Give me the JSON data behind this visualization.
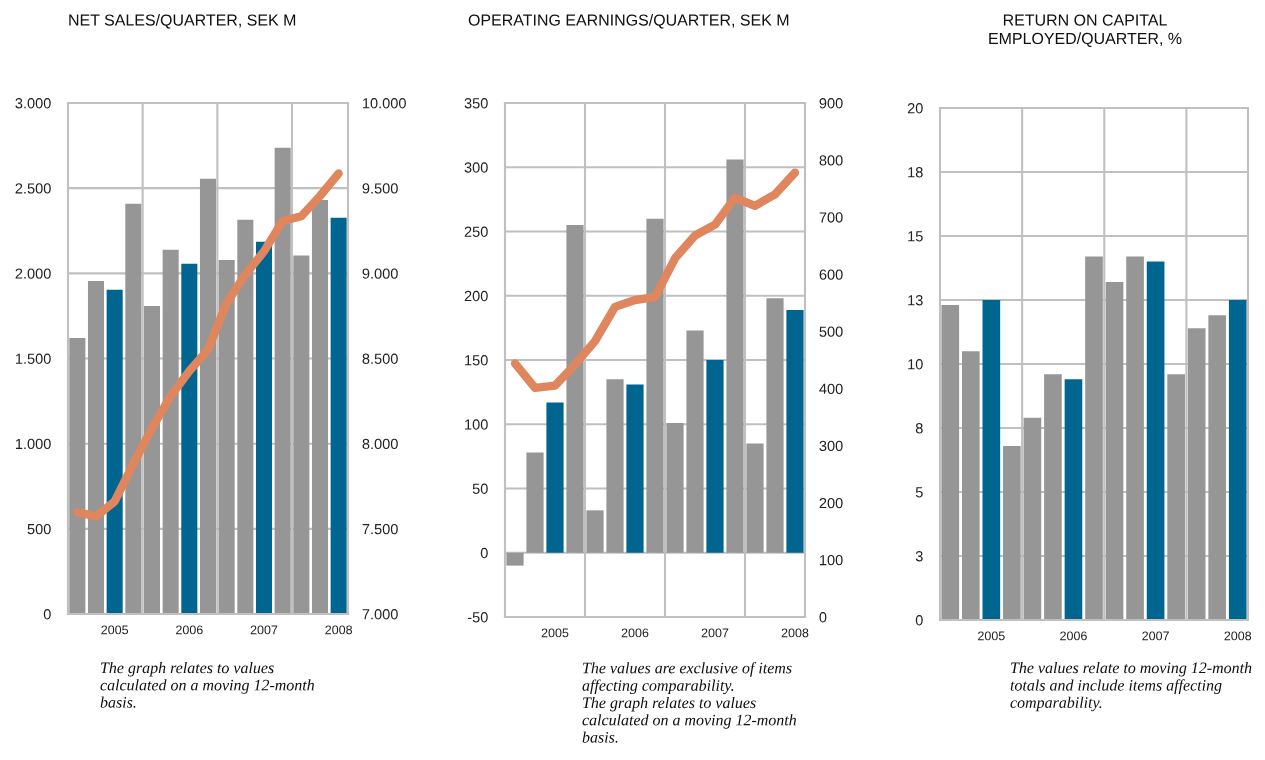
{
  "chart_data": [
    {
      "type": "bar",
      "title": "NET SALES/QUARTER, SEK M",
      "categories": [
        null,
        null,
        "2005",
        null,
        null,
        null,
        "2006",
        null,
        null,
        null,
        "2007",
        null,
        null,
        null,
        "2008"
      ],
      "series": [
        {
          "colors": [
            "#969696",
            "#969696",
            "#006690",
            "#969696",
            "#969696",
            "#969696",
            "#006690",
            "#969696",
            "#969696",
            "#969696",
            "#006690",
            "#969696",
            "#969696",
            "#969696",
            "#006690"
          ],
          "values": [
            1620,
            1955,
            1903,
            2408,
            1808,
            2138,
            2056,
            2555,
            2079,
            2314,
            2186,
            2738,
            2104,
            2431,
            2326
          ]
        },
        {
          "type": "line",
          "axis": "y2",
          "color": "#e0865e",
          "values": [
            7598,
            7573,
            7661,
            7881,
            8091,
            8280,
            8426,
            8552,
            8825,
            8993,
            9129,
            9307,
            9335,
            9454,
            9587
          ]
        }
      ],
      "ylim": [
        0,
        3000
      ],
      "yticks": [
        0,
        {
          "value": 500,
          "label": "500"
        },
        {
          "value": 1000,
          "label": "1.000"
        },
        {
          "value": 1500,
          "label": "1.500"
        },
        {
          "value": 2000,
          "label": "2.000"
        },
        {
          "value": 2500,
          "label": "2.500"
        },
        {
          "value": 3000,
          "label": "3.000"
        }
      ],
      "y2lim": [
        7000,
        10000
      ],
      "y2ticks": [
        {
          "value": 7000,
          "label": "7.000"
        },
        {
          "value": 7500,
          "label": "7.500"
        },
        {
          "value": 8000,
          "label": "8.000"
        },
        {
          "value": 8500,
          "label": "8.500"
        },
        {
          "value": 9000,
          "label": "9.000"
        },
        {
          "value": 9500,
          "label": "9.500"
        },
        {
          "value": 10000,
          "label": "10.000"
        }
      ],
      "grid": "y",
      "annotations": [
        "The graph relates to values calculated on a moving 12-month basis."
      ]
    },
    {
      "type": "bar",
      "title": "OPERATING EARNINGS/QUARTER, SEK M",
      "categories": [
        null,
        null,
        "2005",
        null,
        null,
        null,
        "2006",
        null,
        null,
        null,
        "2007",
        null,
        null,
        null,
        "2008"
      ],
      "series": [
        {
          "colors": [
            "#969696",
            "#969696",
            "#006690",
            "#969696",
            "#969696",
            "#969696",
            "#006690",
            "#969696",
            "#969696",
            "#969696",
            "#006690",
            "#969696",
            "#969696",
            "#969696",
            "#006690"
          ],
          "values": [
            -10,
            78,
            117,
            255,
            33,
            135,
            131,
            260,
            101,
            173,
            150,
            306,
            85,
            198,
            189
          ]
        },
        {
          "type": "line",
          "axis": "y2",
          "color": "#e0865e",
          "values": [
            444,
            401,
            405,
            442,
            483,
            543,
            555,
            560,
            628,
            668,
            687,
            734,
            720,
            740,
            778
          ]
        }
      ],
      "ylim": [
        -50,
        350
      ],
      "yticks": [
        -50,
        0,
        50,
        100,
        150,
        200,
        250,
        300,
        350
      ],
      "y2lim": [
        0,
        900
      ],
      "y2ticks": [
        0,
        100,
        200,
        300,
        400,
        500,
        600,
        700,
        800,
        900
      ],
      "grid": "y",
      "annotations": [
        "The values are exclusive of items affecting comparability.\nThe graph relates to values calculated on a moving 12-month basis."
      ]
    },
    {
      "type": "bar",
      "title": "RETURN ON CAPITAL\nEMPLOYED/QUARTER, %",
      "categories": [
        null,
        null,
        "2005",
        null,
        null,
        null,
        "2006",
        null,
        null,
        null,
        "2007",
        null,
        null,
        null,
        "2008"
      ],
      "series": [
        {
          "colors": [
            "#969696",
            "#969696",
            "#006690",
            "#969696",
            "#969696",
            "#969696",
            "#006690",
            "#969696",
            "#969696",
            "#969696",
            "#006690",
            "#969696",
            "#969696",
            "#969696",
            "#006690"
          ],
          "values": [
            12.3,
            10.5,
            12.5,
            6.8,
            7.9,
            9.6,
            9.4,
            14.2,
            13.2,
            14.2,
            14.0,
            9.6,
            11.4,
            11.9,
            12.5
          ]
        }
      ],
      "ylim": [
        0,
        20
      ],
      "yticks": [
        0,
        {
          "value": 2.5,
          "label": "3"
        },
        5,
        {
          "value": 7.5,
          "label": "8"
        },
        10,
        {
          "value": 12.5,
          "label": "13"
        },
        15,
        {
          "value": 17.5,
          "label": "18"
        },
        20
      ],
      "grid": "y",
      "annotations": [
        "The values relate to moving 12-month totals and include items affecting comparability."
      ]
    }
  ]
}
